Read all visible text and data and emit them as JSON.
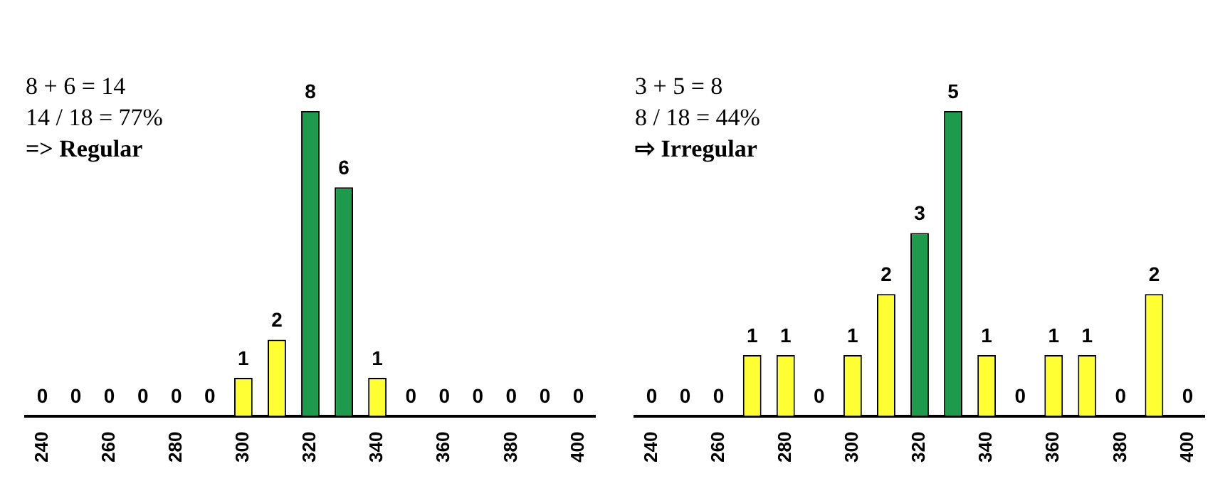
{
  "chart_data": [
    {
      "type": "bar",
      "annotations": [
        "8 + 6 = 14",
        "14 / 18 = 77%",
        "=> Regular"
      ],
      "categories": [
        "240",
        null,
        "260",
        null,
        "280",
        null,
        "300",
        null,
        "320",
        null,
        "340",
        null,
        "360",
        null,
        "380",
        null,
        "400"
      ],
      "values": [
        0,
        0,
        0,
        0,
        0,
        0,
        1,
        2,
        8,
        6,
        1,
        0,
        0,
        0,
        0,
        0,
        0
      ],
      "colors": [
        "#ffff33",
        "#ffff33",
        "#ffff33",
        "#ffff33",
        "#ffff33",
        "#ffff33",
        "#ffff33",
        "#ffff33",
        "#1e9a4c",
        "#1e9a4c",
        "#ffff33",
        "#ffff33",
        "#ffff33",
        "#ffff33",
        "#ffff33",
        "#ffff33",
        "#ffff33"
      ],
      "data_labels": true,
      "tick_labels": "x",
      "grid": false,
      "legend": false
    },
    {
      "type": "bar",
      "annotations": [
        "3 + 5 = 8",
        "8 / 18 = 44%",
        "⇨  Irregular"
      ],
      "categories": [
        "240",
        null,
        "260",
        null,
        "280",
        null,
        "300",
        null,
        "320",
        null,
        "340",
        null,
        "360",
        null,
        "380",
        null,
        "400"
      ],
      "values": [
        0,
        0,
        0,
        1,
        1,
        0,
        1,
        2,
        3,
        5,
        1,
        0,
        1,
        1,
        0,
        2,
        0
      ],
      "colors": [
        "#ffff33",
        "#ffff33",
        "#ffff33",
        "#ffff33",
        "#ffff33",
        "#ffff33",
        "#ffff33",
        "#ffff33",
        "#1e9a4c",
        "#1e9a4c",
        "#ffff33",
        "#ffff33",
        "#ffff33",
        "#ffff33",
        "#ffff33",
        "#ffff33",
        "#ffff33"
      ],
      "data_labels": true,
      "tick_labels": "x",
      "grid": false,
      "legend": false
    }
  ]
}
